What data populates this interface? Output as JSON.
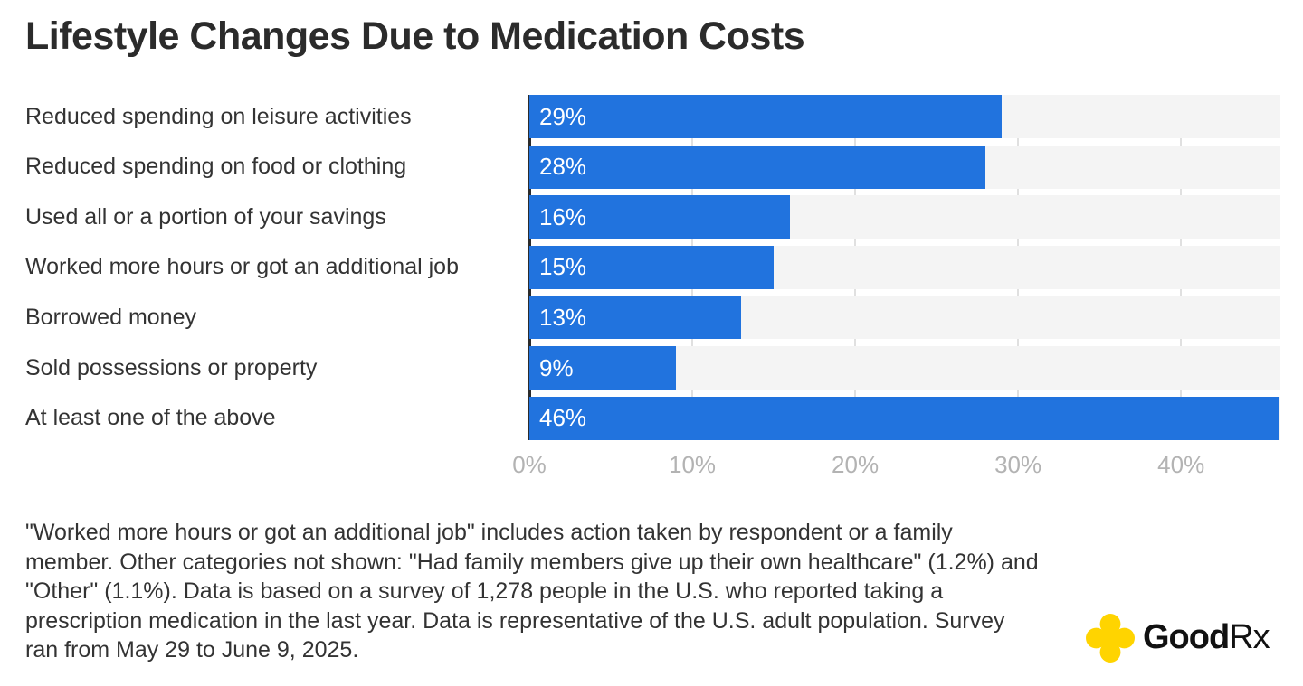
{
  "title": "Lifestyle Changes Due to Medication Costs",
  "chart_data": {
    "type": "bar",
    "orientation": "horizontal",
    "title": "Lifestyle Changes Due to Medication Costs",
    "categories": [
      "Reduced spending on leisure activities",
      "Reduced spending on food or clothing",
      "Used all or a portion of your savings",
      "Worked more hours or got an additional job",
      "Borrowed money",
      "Sold possessions or property",
      "At least one of the above"
    ],
    "values": [
      29,
      28,
      16,
      15,
      13,
      9,
      46
    ],
    "value_labels": [
      "29%",
      "28%",
      "16%",
      "15%",
      "13%",
      "9%",
      "46%"
    ],
    "xlabel": "",
    "ylabel": "",
    "xlim": [
      0,
      46.1
    ],
    "x_ticks": [
      {
        "value": 0,
        "label": "0%"
      },
      {
        "value": 10,
        "label": "10%"
      },
      {
        "value": 20,
        "label": "20%"
      },
      {
        "value": 30,
        "label": "30%"
      },
      {
        "value": 40,
        "label": "40%"
      }
    ],
    "grid": true,
    "legend": false,
    "colors": {
      "bar": "#2173DE",
      "track": "#F4F4F4",
      "gridline": "#E0E0E0",
      "axis_line": "#2B2B2B",
      "tick_label": "#B3B3B3",
      "category_label": "#333333",
      "value_label": "#FFFFFF",
      "title": "#2B2B2B",
      "background": "#FFFFFF"
    }
  },
  "footnote": "\"Worked more hours or got an additional job\" includes action taken by respondent or a family member. Other categories not shown: \"Had family members give up their own healthcare\" (1.2%) and \"Other\" (1.1%). Data is based on a survey of 1,278 people in the U.S. who reported taking a prescription medication in the last year. Data is representative of the U.S. adult population. Survey ran from May 29 to June 9, 2025.",
  "logo": {
    "brand_bold": "Good",
    "brand_light": "Rx",
    "icon": "goodrx-cross-icon",
    "icon_color": "#FFD400",
    "text_color": "#111111"
  }
}
